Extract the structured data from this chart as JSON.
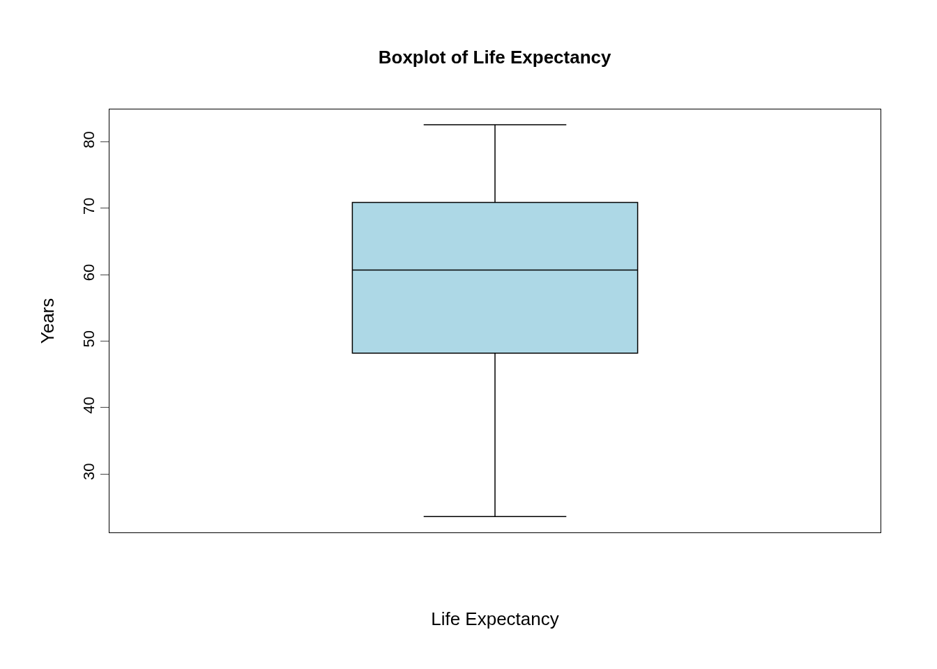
{
  "chart_data": {
    "type": "box",
    "title": "Boxplot of Life Expectancy",
    "xlabel": "Life Expectancy",
    "ylabel": "Years",
    "categories": [
      null
    ],
    "boxes": [
      {
        "low": 23.6,
        "q1": 48.2,
        "median": 60.7,
        "q3": 70.9,
        "high": 82.6
      }
    ],
    "color": "#add8e6",
    "ylim": [
      21.2,
      84.9
    ],
    "yticks": [
      30,
      40,
      50,
      60,
      70,
      80
    ]
  }
}
